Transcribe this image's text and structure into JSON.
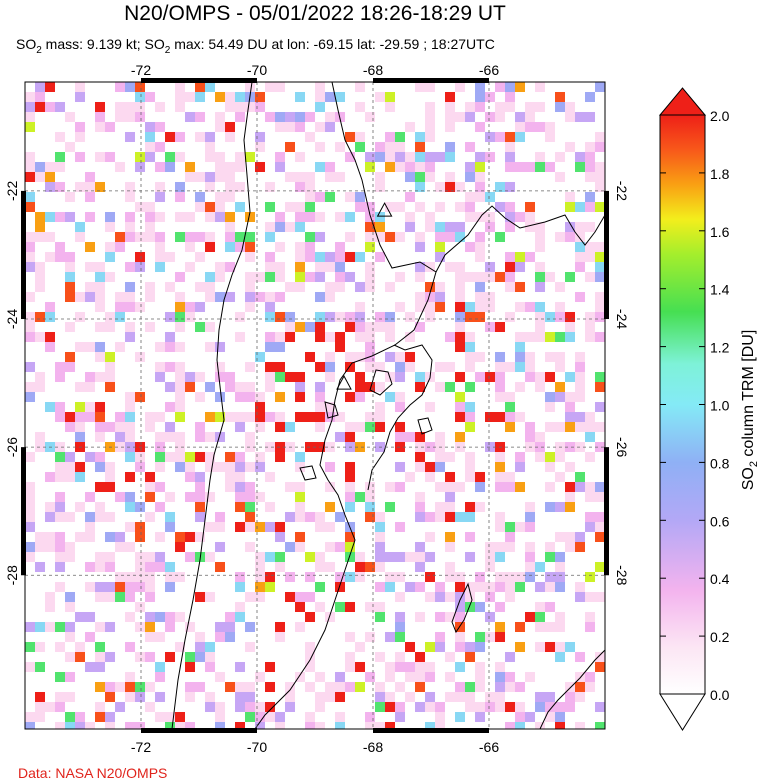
{
  "title": "N20/OMPS - 05/01/2022 18:26-18:29 UT",
  "subtitle": {
    "mass_prefix": "SO",
    "mass_sub": "2",
    "mass_text": " mass: 9.139 kt; ",
    "max_prefix": "SO",
    "max_sub": "2",
    "max_text": " max: 54.49 DU at lon: -69.15 lat: -29.59 ; 18:27UTC"
  },
  "credit": "Data: NASA N20/OMPS",
  "map": {
    "lon_range": [
      -74,
      -64
    ],
    "lat_range": [
      -20.3,
      -30.4
    ],
    "lon_ticks": [
      -72,
      -70,
      -68,
      -66
    ],
    "lat_ticks": [
      -22,
      -24,
      -26,
      -28
    ],
    "lon_tick_labels": [
      "-72",
      "-70",
      "-68",
      "-66"
    ],
    "lat_tick_labels": [
      "-22",
      "-24",
      "-26",
      "-28"
    ],
    "volcano_markers": [
      {
        "lon": -67.8,
        "lat": -22.3
      },
      {
        "lon": -68.5,
        "lat": -25.0
      }
    ]
  },
  "colorbar": {
    "title_prefix": "SO",
    "title_sub": "2",
    "title_text": " column TRM [DU]",
    "min": 0.0,
    "max": 2.0,
    "tick_values": [
      0.0,
      0.2,
      0.4,
      0.6,
      0.8,
      1.0,
      1.2,
      1.4,
      1.6,
      1.8,
      2.0
    ],
    "tick_labels": [
      "0.0",
      "0.2",
      "0.4",
      "0.6",
      "0.8",
      "1.0",
      "1.2",
      "1.4",
      "1.6",
      "1.8",
      "2.0"
    ],
    "colors": [
      "#ffffff",
      "#fcd9f0",
      "#f3b3ee",
      "#c6a6f5",
      "#9fa9f5",
      "#88d8f4",
      "#7ef2e2",
      "#51e36e",
      "#43de3a",
      "#cdf126",
      "#f8e81c",
      "#f9a013",
      "#f8501a",
      "#ee2018"
    ]
  }
}
